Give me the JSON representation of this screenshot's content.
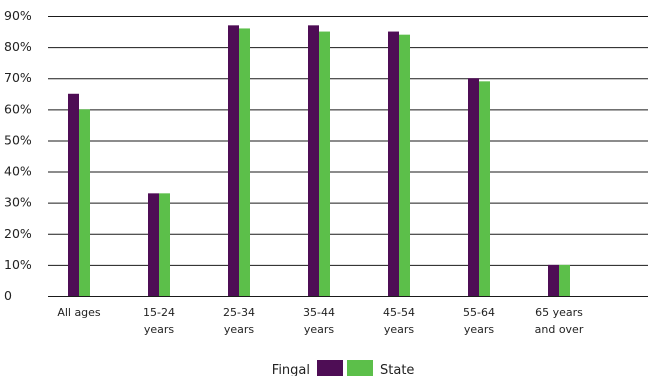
{
  "chart_data": {
    "type": "bar",
    "categories": [
      [
        "All ages"
      ],
      [
        "15-24",
        "years"
      ],
      [
        "25-34",
        "years"
      ],
      [
        "35-44",
        "years"
      ],
      [
        "45-54",
        "years"
      ],
      [
        "55-64",
        "years"
      ],
      [
        "65 years",
        "and over"
      ]
    ],
    "series": [
      {
        "name": "Fingal",
        "color": "#4e0d55",
        "values": [
          65,
          33,
          87,
          87,
          85,
          70,
          10
        ]
      },
      {
        "name": "State",
        "color": "#5cbf4a",
        "values": [
          60,
          33,
          86,
          85,
          84,
          69,
          10
        ]
      }
    ],
    "yticks": [
      "0",
      "10%",
      "20%",
      "30%",
      "40%",
      "50%",
      "60%",
      "70%",
      "80%",
      "90%"
    ],
    "ylim": [
      0,
      90
    ],
    "grid": true,
    "legend_position": "bottom-center"
  }
}
